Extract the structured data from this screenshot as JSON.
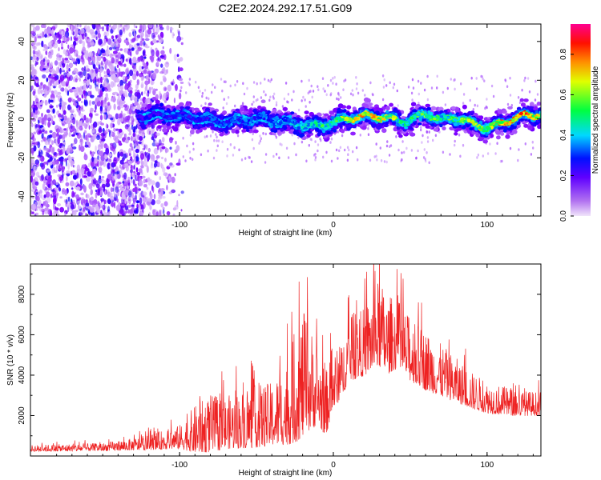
{
  "title": "C2E2.2024.292.17.51.G09",
  "chart_data": [
    {
      "type": "heatmap",
      "xlabel": "Height of straight line (km)",
      "ylabel": "Frequency (Hz)",
      "xlim": [
        -197,
        135
      ],
      "ylim": [
        -50,
        49
      ],
      "xticks": [
        -100,
        0,
        100
      ],
      "xtick_labels": [
        "-100",
        "0",
        "100"
      ],
      "yticks": [
        -40,
        -20,
        0,
        20,
        40
      ],
      "ytick_labels": [
        "-40",
        "-20",
        "0",
        "20",
        "40"
      ],
      "colorbar": {
        "label": "Normalized spectral amplitude",
        "range": [
          0,
          0.95
        ],
        "ticks": [
          0.0,
          0.2,
          0.4,
          0.6,
          0.8
        ],
        "tick_labels": [
          "0.0",
          "0.2",
          "0.4",
          "0.6",
          "0.8"
        ],
        "colors": [
          "#e8d8f8",
          "#8000ff",
          "#0000ff",
          "#00e0ff",
          "#00ff40",
          "#ffff00",
          "#ff8000",
          "#ff0000",
          "#ff0080"
        ]
      },
      "ridge": {
        "description_x": [
          -125,
          -100,
          -80,
          -60,
          -40,
          -20,
          0,
          20,
          35,
          45,
          60,
          70,
          80,
          100,
          120,
          135
        ],
        "frequency": [
          3,
          0,
          0,
          0,
          -2,
          -2,
          -2,
          0,
          2,
          0,
          2,
          -2,
          0,
          -3,
          0,
          1
        ],
        "amplitude": [
          0.25,
          0.3,
          0.3,
          0.35,
          0.35,
          0.45,
          0.55,
          0.8,
          0.7,
          0.5,
          0.6,
          0.5,
          0.6,
          0.7,
          0.9,
          0.7
        ]
      }
    },
    {
      "type": "line",
      "xlabel": "Height of straight line (km)",
      "ylabel": "SNR (10 * v/v)",
      "xlim": [
        -197,
        135
      ],
      "ylim": [
        0,
        9500
      ],
      "xticks": [
        -100,
        0,
        100
      ],
      "xtick_labels": [
        "-100",
        "0",
        "100"
      ],
      "yticks": [
        2000,
        4000,
        6000,
        8000
      ],
      "ytick_labels": [
        "2000",
        "4000",
        "6000",
        "8000"
      ],
      "line_color": "#ee2222",
      "envelope": {
        "x": [
          -197,
          -150,
          -125,
          -100,
          -90,
          -80,
          -70,
          -60,
          -50,
          -40,
          -30,
          -25,
          -20,
          -15,
          -10,
          -5,
          0,
          5,
          10,
          20,
          25,
          30,
          35,
          40,
          50,
          60,
          70,
          80,
          90,
          100,
          110,
          120,
          135
        ],
        "base": [
          300,
          350,
          450,
          650,
          750,
          900,
          1000,
          1100,
          1200,
          1300,
          1600,
          2000,
          2500,
          2600,
          2500,
          1800,
          3000,
          3500,
          4500,
          4800,
          5200,
          5500,
          5000,
          5200,
          4500,
          4000,
          3600,
          3200,
          2800,
          2500,
          2400,
          2300,
          2300
        ],
        "amp": [
          250,
          300,
          500,
          900,
          1800,
          2200,
          2000,
          2200,
          2400,
          2400,
          3200,
          4200,
          4800,
          4000,
          3000,
          2500,
          2200,
          2000,
          2500,
          2600,
          3000,
          3400,
          3000,
          2800,
          2400,
          2300,
          2000,
          1700,
          1400,
          1200,
          1100,
          1000,
          900
        ]
      }
    }
  ]
}
